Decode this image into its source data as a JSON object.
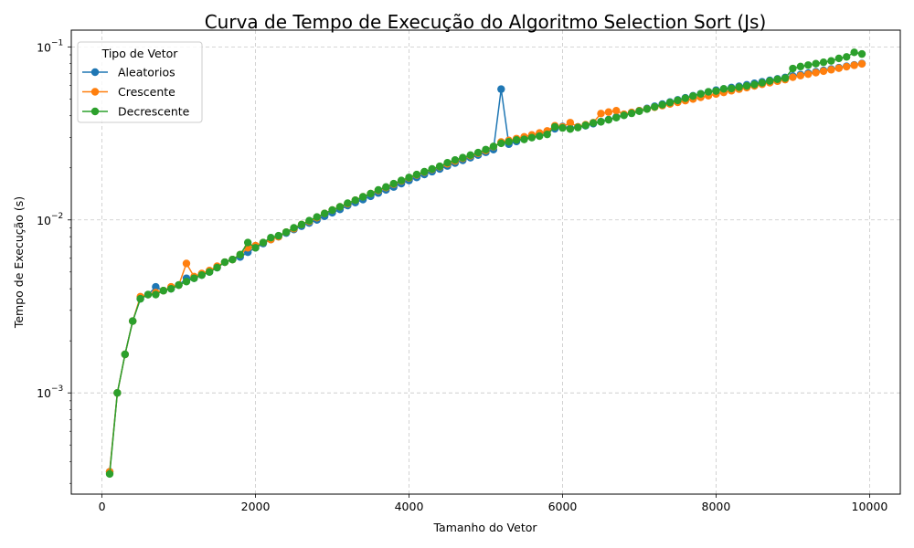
{
  "chart_data": {
    "type": "line",
    "title": "Curva de Tempo de Execução do Algoritmo Selection Sort (Js)",
    "xlabel": "Tamanho do Vetor",
    "ylabel": "Tempo de Execução (s)",
    "xscale": "linear",
    "yscale": "log",
    "xlim": [
      -400,
      10400
    ],
    "ylim": [
      0.00026,
      0.125
    ],
    "xticks": [
      {
        "value": 0,
        "label": "0"
      },
      {
        "value": 2000,
        "label": "2000"
      },
      {
        "value": 4000,
        "label": "4000"
      },
      {
        "value": 6000,
        "label": "6000"
      },
      {
        "value": 8000,
        "label": "8000"
      },
      {
        "value": 10000,
        "label": "10000"
      }
    ],
    "yticks": [
      {
        "value": 0.001,
        "base": "10",
        "exp": "−3"
      },
      {
        "value": 0.01,
        "base": "10",
        "exp": "−2"
      },
      {
        "value": 0.1,
        "base": "10",
        "exp": "−1"
      }
    ],
    "grid": true,
    "legend": {
      "title": "Tipo de Vetor",
      "position": "top-left"
    },
    "x": [
      100,
      200,
      300,
      400,
      500,
      600,
      700,
      800,
      900,
      1000,
      1100,
      1200,
      1300,
      1400,
      1500,
      1600,
      1700,
      1800,
      1900,
      2000,
      2100,
      2200,
      2300,
      2400,
      2500,
      2600,
      2700,
      2800,
      2900,
      3000,
      3100,
      3200,
      3300,
      3400,
      3500,
      3600,
      3700,
      3800,
      3900,
      4000,
      4100,
      4200,
      4300,
      4400,
      4500,
      4600,
      4700,
      4800,
      4900,
      5000,
      5100,
      5200,
      5300,
      5400,
      5500,
      5600,
      5700,
      5800,
      5900,
      6000,
      6100,
      6200,
      6300,
      6400,
      6500,
      6600,
      6700,
      6800,
      6900,
      7000,
      7100,
      7200,
      7300,
      7400,
      7500,
      7600,
      7700,
      7800,
      7900,
      8000,
      8100,
      8200,
      8300,
      8400,
      8500,
      8600,
      8700,
      8800,
      8900,
      9000,
      9100,
      9200,
      9300,
      9400,
      9500,
      9600,
      9700,
      9800,
      9900
    ],
    "series": [
      {
        "name": "Aleatorios",
        "color": "#1f77b4",
        "values": [
          0.00035,
          0.001,
          0.00167,
          0.0026,
          0.0035,
          0.0037,
          0.0041,
          0.0039,
          0.004,
          0.0042,
          0.0046,
          0.0046,
          0.0048,
          0.005,
          0.0053,
          0.0057,
          0.0059,
          0.0061,
          0.0065,
          0.0069,
          0.0073,
          0.0077,
          0.008,
          0.0084,
          0.0088,
          0.0092,
          0.0096,
          0.01,
          0.0105,
          0.011,
          0.0115,
          0.0121,
          0.0126,
          0.0131,
          0.0137,
          0.0143,
          0.0149,
          0.0155,
          0.0162,
          0.0169,
          0.0176,
          0.0183,
          0.019,
          0.0197,
          0.0205,
          0.0213,
          0.0221,
          0.0229,
          0.0237,
          0.0246,
          0.0255,
          0.057,
          0.0274,
          0.0284,
          0.0294,
          0.0304,
          0.0314,
          0.0325,
          0.0336,
          0.0347,
          0.0339,
          0.0345,
          0.035,
          0.036,
          0.037,
          0.038,
          0.0393,
          0.0404,
          0.0416,
          0.0428,
          0.0441,
          0.0454,
          0.0467,
          0.048,
          0.0494,
          0.0508,
          0.0522,
          0.0536,
          0.055,
          0.0562,
          0.0572,
          0.0582,
          0.0592,
          0.0604,
          0.0616,
          0.0628,
          0.0641,
          0.0654,
          0.0666,
          0.0679,
          0.0692,
          0.0705,
          0.0718,
          0.0731,
          0.0745,
          0.0759,
          0.0773,
          0.0787,
          0.0801
        ]
      },
      {
        "name": "Crescente",
        "color": "#ff7f0e",
        "values": [
          0.00035,
          0.001,
          0.00167,
          0.0026,
          0.0036,
          0.0037,
          0.0038,
          0.0039,
          0.0041,
          0.0042,
          0.0056,
          0.0047,
          0.0049,
          0.0051,
          0.0054,
          0.0057,
          0.0059,
          0.0063,
          0.0069,
          0.0071,
          0.0074,
          0.0077,
          0.008,
          0.0085,
          0.0089,
          0.0094,
          0.0098,
          0.0103,
          0.0109,
          0.0114,
          0.0119,
          0.0124,
          0.013,
          0.0136,
          0.0142,
          0.0148,
          0.0154,
          0.0161,
          0.0168,
          0.0175,
          0.0182,
          0.0189,
          0.0196,
          0.0203,
          0.0211,
          0.0219,
          0.0227,
          0.0235,
          0.0243,
          0.0252,
          0.0265,
          0.0282,
          0.0288,
          0.0295,
          0.0302,
          0.031,
          0.0318,
          0.0327,
          0.035,
          0.0345,
          0.0365,
          0.0345,
          0.0355,
          0.0365,
          0.0412,
          0.042,
          0.0428,
          0.0408,
          0.0418,
          0.0428,
          0.0438,
          0.0448,
          0.0458,
          0.0468,
          0.0478,
          0.0489,
          0.05,
          0.0511,
          0.0522,
          0.0534,
          0.0546,
          0.0558,
          0.057,
          0.0582,
          0.0595,
          0.0608,
          0.0621,
          0.0634,
          0.0647,
          0.0668,
          0.0682,
          0.0696,
          0.071,
          0.0724,
          0.0738,
          0.0753,
          0.0768,
          0.0783,
          0.0798
        ]
      },
      {
        "name": "Decrescente",
        "color": "#2ca02c",
        "values": [
          0.00034,
          0.001,
          0.00167,
          0.0026,
          0.0035,
          0.0037,
          0.0037,
          0.0039,
          0.004,
          0.0042,
          0.0044,
          0.0046,
          0.0048,
          0.005,
          0.0053,
          0.0057,
          0.0059,
          0.0063,
          0.0074,
          0.0069,
          0.0074,
          0.0079,
          0.0081,
          0.0085,
          0.009,
          0.0094,
          0.0099,
          0.0104,
          0.0109,
          0.0114,
          0.0119,
          0.0125,
          0.013,
          0.0136,
          0.0142,
          0.0149,
          0.0155,
          0.0162,
          0.0169,
          0.0176,
          0.0183,
          0.019,
          0.0197,
          0.0204,
          0.0214,
          0.0222,
          0.0229,
          0.0237,
          0.0245,
          0.0255,
          0.0266,
          0.0277,
          0.0283,
          0.029,
          0.0292,
          0.0299,
          0.0305,
          0.0312,
          0.0345,
          0.034,
          0.0335,
          0.0342,
          0.0352,
          0.0363,
          0.0369,
          0.0379,
          0.039,
          0.0402,
          0.0413,
          0.0425,
          0.0437,
          0.045,
          0.0463,
          0.0477,
          0.0491,
          0.0505,
          0.052,
          0.0535,
          0.055,
          0.0556,
          0.0572,
          0.0575,
          0.0585,
          0.0595,
          0.0606,
          0.062,
          0.0635,
          0.065,
          0.066,
          0.075,
          0.077,
          0.0785,
          0.08,
          0.0815,
          0.083,
          0.0858,
          0.0875,
          0.093,
          0.091
        ]
      }
    ]
  }
}
